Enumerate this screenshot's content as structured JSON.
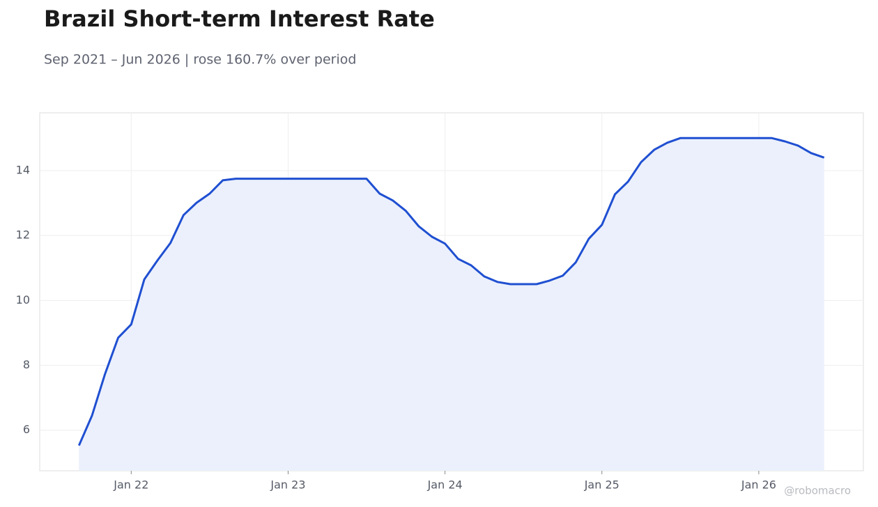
{
  "chart_data": {
    "type": "area",
    "title": "Brazil Short-term Interest Rate",
    "subtitle": "Sep 2021 – Jun 2026 | rose 160.7% over period",
    "watermark": "@robomacro",
    "color": "#1f4fd1",
    "fill_color": "#ebf0fc",
    "grid": true,
    "x": [
      "2021-09",
      "2021-10",
      "2021-11",
      "2021-12",
      "2022-01",
      "2022-02",
      "2022-03",
      "2022-04",
      "2022-05",
      "2022-06",
      "2022-07",
      "2022-08",
      "2022-09",
      "2022-10",
      "2022-11",
      "2022-12",
      "2023-01",
      "2023-02",
      "2023-03",
      "2023-04",
      "2023-05",
      "2023-06",
      "2023-07",
      "2023-08",
      "2023-09",
      "2023-10",
      "2023-11",
      "2023-12",
      "2024-01",
      "2024-02",
      "2024-03",
      "2024-04",
      "2024-05",
      "2024-06",
      "2024-07",
      "2024-08",
      "2024-09",
      "2024-10",
      "2024-11",
      "2024-12",
      "2025-01",
      "2025-02",
      "2025-03",
      "2025-04",
      "2025-05",
      "2025-06",
      "2025-07",
      "2025-08",
      "2025-09",
      "2025-10",
      "2025-11",
      "2025-12",
      "2026-01",
      "2026-02",
      "2026-03",
      "2026-04",
      "2026-05",
      "2026-06"
    ],
    "values": [
      5.53,
      6.45,
      7.74,
      8.85,
      9.26,
      10.65,
      11.23,
      11.77,
      12.63,
      13.01,
      13.29,
      13.7,
      13.75,
      13.75,
      13.75,
      13.75,
      13.75,
      13.75,
      13.75,
      13.75,
      13.75,
      13.75,
      13.75,
      13.29,
      13.08,
      12.76,
      12.28,
      11.96,
      11.75,
      11.28,
      11.08,
      10.74,
      10.57,
      10.5,
      10.5,
      10.5,
      10.61,
      10.76,
      11.17,
      11.9,
      12.33,
      13.27,
      13.66,
      14.26,
      14.64,
      14.86,
      15.0,
      15.0,
      15.0,
      15.0,
      15.0,
      15.0,
      15.0,
      15.0,
      14.9,
      14.77,
      14.54,
      14.4
    ],
    "xlim": [
      "2021-06",
      "2026-09"
    ],
    "xticks": [
      {
        "value": "2022-01",
        "label": "Jan 22"
      },
      {
        "value": "2023-01",
        "label": "Jan 23"
      },
      {
        "value": "2024-01",
        "label": "Jan 24"
      },
      {
        "value": "2025-01",
        "label": "Jan 25"
      },
      {
        "value": "2026-01",
        "label": "Jan 26"
      }
    ],
    "ylim": [
      4.75,
      15.78
    ],
    "yticks": [
      6,
      8,
      10,
      12,
      14
    ]
  }
}
